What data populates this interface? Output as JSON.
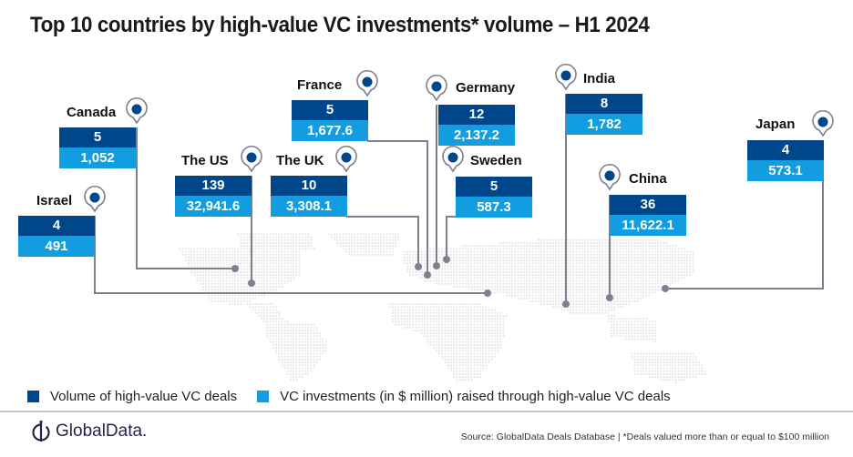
{
  "title": "Top 10 countries by high-value VC investments* volume –  H1 2024",
  "colors": {
    "volume": "#00468b",
    "investment": "#119ddf",
    "connector": "#7d8091",
    "map_dots": "#e3e3e3"
  },
  "countries": [
    {
      "name": "Canada",
      "deals": "5",
      "investment": "1,052"
    },
    {
      "name": "Israel",
      "deals": "4",
      "investment": "491"
    },
    {
      "name": "The US",
      "deals": "139",
      "investment": "32,941.6"
    },
    {
      "name": "The UK",
      "deals": "10",
      "investment": "3,308.1"
    },
    {
      "name": "France",
      "deals": "5",
      "investment": "1,677.6"
    },
    {
      "name": "Germany",
      "deals": "12",
      "investment": "2,137.2"
    },
    {
      "name": "Sweden",
      "deals": "5",
      "investment": "587.3"
    },
    {
      "name": "India",
      "deals": "8",
      "investment": "1,782"
    },
    {
      "name": "China",
      "deals": "36",
      "investment": "11,622.1"
    },
    {
      "name": "Japan",
      "deals": "4",
      "investment": "573.1"
    }
  ],
  "legend": {
    "volume_label": "Volume of high-value VC deals",
    "investment_label": "VC investments (in $ million) raised through high-value VC deals"
  },
  "footer": {
    "logo_text": "GlobalData.",
    "source": "Source: GlobalData Deals Database | *Deals valued more than or equal to $100 million"
  }
}
